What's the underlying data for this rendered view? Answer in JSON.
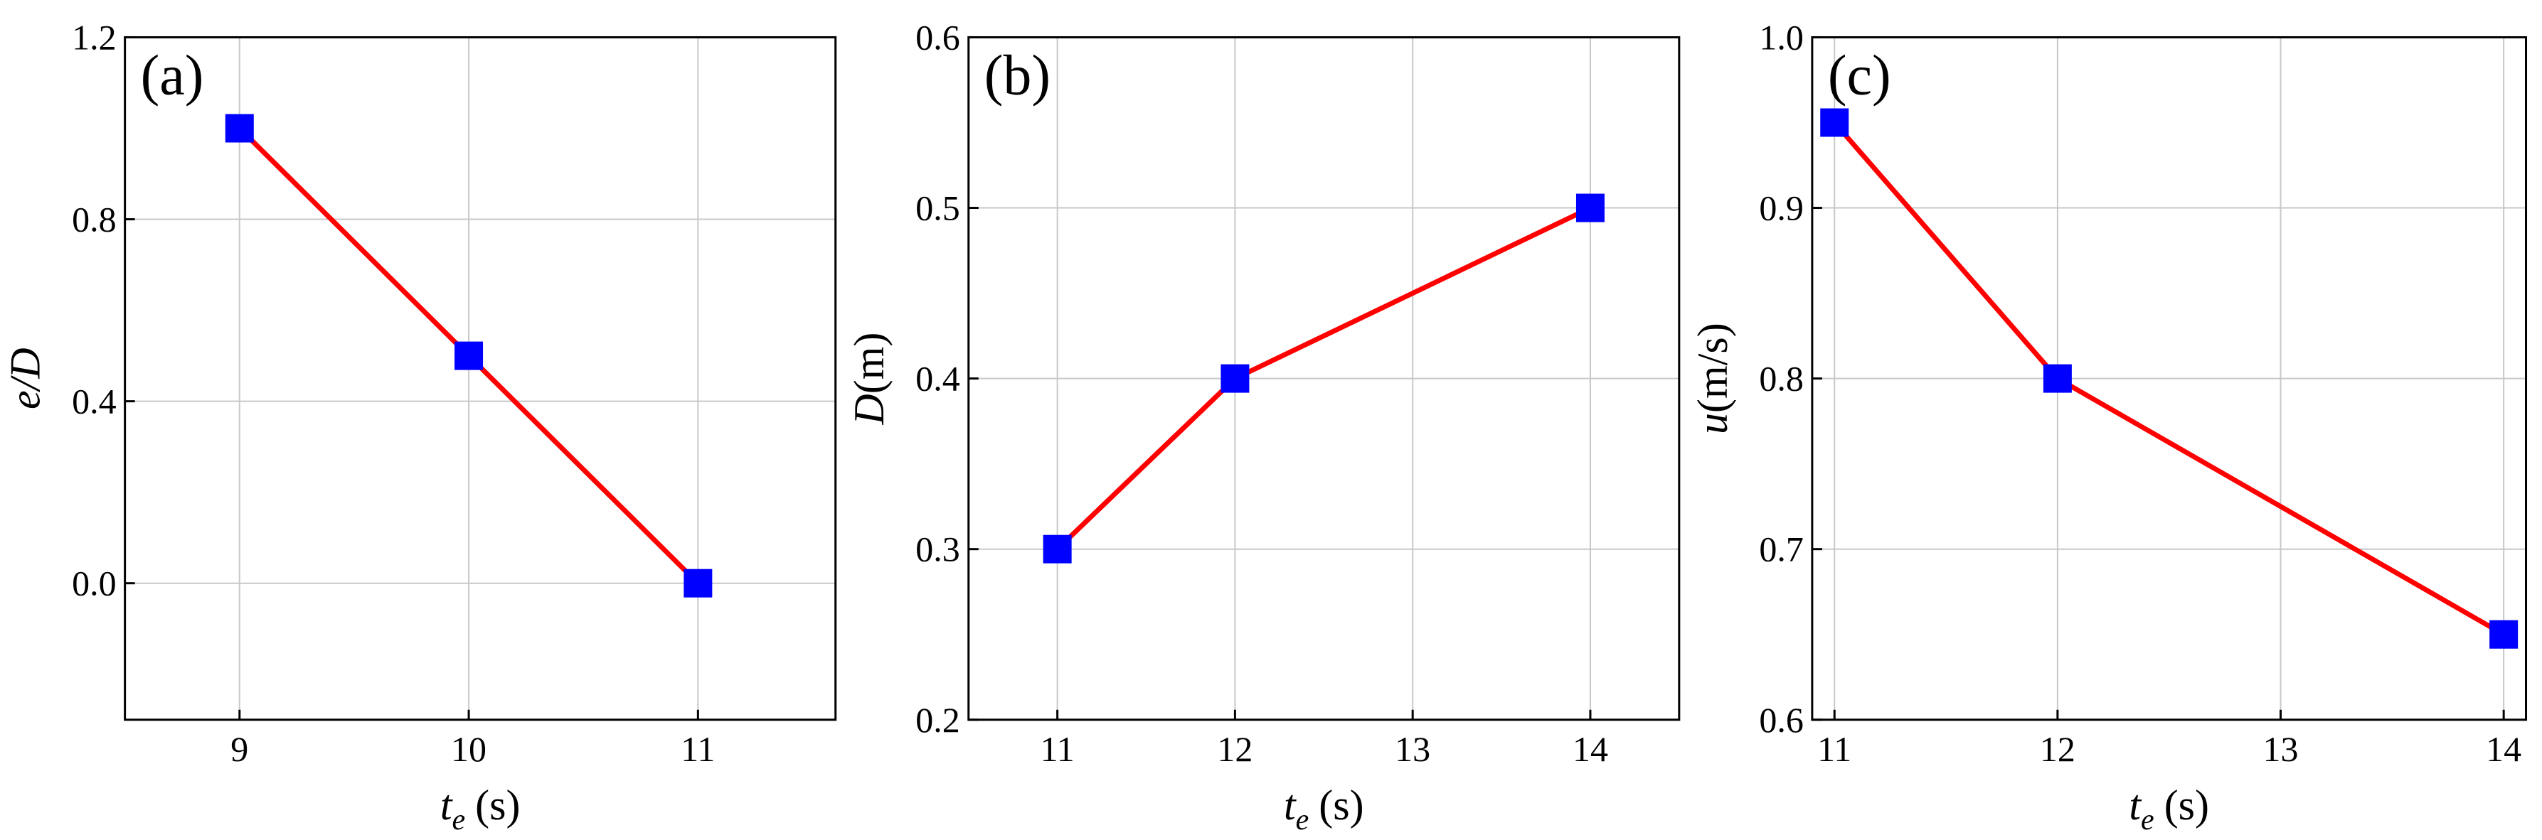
{
  "chart_data": [
    {
      "type": "line",
      "panel_label": "(a)",
      "xlabel": {
        "symbol": "t",
        "subscript": "e",
        "unit": "(s)"
      },
      "ylabel": {
        "symbol": "e/D"
      },
      "x": [
        9,
        10,
        11
      ],
      "series": [
        {
          "color": "#ff0000",
          "marker_color": "#0000ff",
          "values": [
            1.0,
            0.5,
            0.0
          ]
        }
      ],
      "xlim": [
        8.5,
        11.6
      ],
      "xticks": [
        9,
        10,
        11
      ],
      "ylim": [
        -0.3,
        1.2
      ],
      "yticks": [
        {
          "value": 0,
          "label": "0.0"
        },
        {
          "value": 0.4,
          "label": "0.4"
        },
        {
          "value": 0.8,
          "label": "0.8"
        },
        {
          "value": 1.2,
          "label": "1.2"
        }
      ],
      "grid": true
    },
    {
      "type": "line",
      "panel_label": "(b)",
      "xlabel": {
        "symbol": "t",
        "subscript": "e",
        "unit": "(s)"
      },
      "ylabel": {
        "symbol": "D",
        "unit": "(m)"
      },
      "x": [
        11,
        12,
        14
      ],
      "series": [
        {
          "color": "#ff0000",
          "marker_color": "#0000ff",
          "values": [
            0.3,
            0.4,
            0.5
          ]
        }
      ],
      "xlim": [
        10.5,
        14.5
      ],
      "xticks": [
        11,
        12,
        13,
        14
      ],
      "ylim": [
        0.2,
        0.6
      ],
      "yticks": [
        0.2,
        0.3,
        0.4,
        0.5,
        0.6
      ],
      "grid": true
    },
    {
      "type": "line",
      "panel_label": "(c)",
      "xlabel": {
        "symbol": "t",
        "subscript": "e",
        "unit": "(s)"
      },
      "ylabel": {
        "symbol": "u",
        "unit": "(m/s)"
      },
      "x": [
        11,
        12,
        14
      ],
      "series": [
        {
          "color": "#ff0000",
          "marker_color": "#0000ff",
          "values": [
            0.95,
            0.8,
            0.65
          ]
        }
      ],
      "xlim": [
        10.9,
        14.1
      ],
      "xticks": [
        11,
        12,
        13,
        14
      ],
      "ylim": [
        0.6,
        1.0
      ],
      "yticks": [
        0.6,
        0.7,
        0.8,
        0.9,
        {
          "value": 1.0,
          "label": "1.0"
        }
      ],
      "grid": true
    }
  ]
}
